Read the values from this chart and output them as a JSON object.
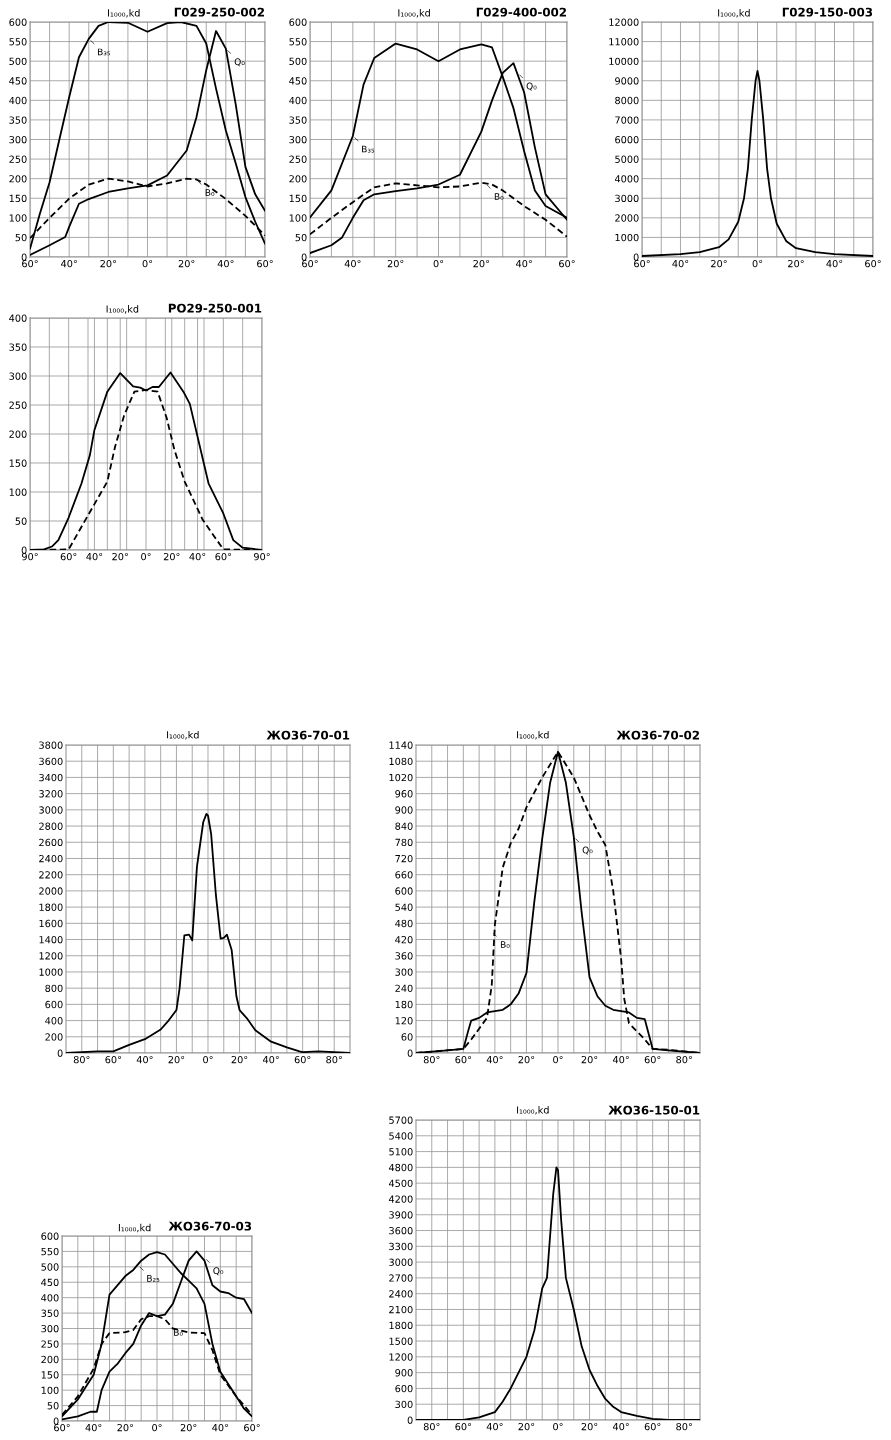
{
  "chart_data": [
    {
      "type": "line",
      "title": "Г029-250-002",
      "ylabel": "I₁₀₀₀,kd",
      "grid": true,
      "xlim": [
        -60,
        60
      ],
      "ylim": [
        0,
        600
      ],
      "xticks": [
        {
          "value": -60,
          "label": "60°"
        },
        {
          "value": -50,
          "label": null
        },
        {
          "value": -40,
          "label": "40°"
        },
        {
          "value": -30,
          "label": null
        },
        {
          "value": -20,
          "label": "20°"
        },
        {
          "value": -10,
          "label": null
        },
        {
          "value": 0,
          "label": "0°"
        },
        {
          "value": 10,
          "label": null
        },
        {
          "value": 20,
          "label": "20°"
        },
        {
          "value": 30,
          "label": null
        },
        {
          "value": 40,
          "label": "40°"
        },
        {
          "value": 50,
          "label": null
        },
        {
          "value": 60,
          "label": "60°"
        }
      ],
      "yticks": [
        0,
        50,
        100,
        150,
        200,
        250,
        300,
        350,
        400,
        450,
        500,
        550,
        600
      ],
      "series": [
        {
          "color": "#000000",
          "line_style": "solid",
          "x": [
            -60,
            -55,
            -50,
            -45,
            -40,
            -35,
            -30,
            -25,
            -20,
            -10,
            0,
            10,
            17,
            25,
            30,
            35,
            40,
            45,
            50,
            55,
            60
          ],
          "values": [
            21,
            110,
            191,
            300,
            408,
            510,
            557,
            590,
            600,
            598,
            575,
            597,
            600,
            590,
            545,
            430,
            323,
            240,
            153,
            90,
            34
          ]
        },
        {
          "color": "#000000",
          "line_style": "solid",
          "x": [
            -60,
            -50,
            -42,
            -40,
            -35,
            -30,
            -20,
            -10,
            0,
            10,
            20,
            25,
            30,
            35,
            40,
            45,
            50,
            55,
            60
          ],
          "values": [
            5,
            30,
            51,
            77,
            136,
            148,
            166,
            175,
            183,
            208,
            272,
            357,
            477,
            577,
            532,
            391,
            230,
            160,
            118
          ]
        },
        {
          "color": "#000000",
          "line_style": "dashed",
          "x": [
            -60,
            -50,
            -40,
            -30,
            -20,
            -10,
            0,
            10,
            20,
            25,
            30,
            40,
            50,
            60
          ],
          "values": [
            48,
            100,
            149,
            185,
            200,
            193,
            180,
            188,
            200,
            198,
            185,
            148,
            105,
            55
          ]
        }
      ],
      "annotations": [
        {
          "text": "B₃₅",
          "x": -30,
          "y": 557
        },
        {
          "text": "Q₀",
          "x": 40,
          "y": 532
        },
        {
          "text": "B₀",
          "x": 25,
          "y": 198
        }
      ]
    },
    {
      "type": "line",
      "title": "Г029-400-002",
      "ylabel": "I₁₀₀₀,kd",
      "grid": true,
      "xlim": [
        -60,
        60
      ],
      "ylim": [
        0,
        600
      ],
      "xticks": [
        {
          "value": -60,
          "label": "60°"
        },
        {
          "value": -50,
          "label": null
        },
        {
          "value": -40,
          "label": "40°"
        },
        {
          "value": -30,
          "label": null
        },
        {
          "value": -20,
          "label": "20°"
        },
        {
          "value": -10,
          "label": null
        },
        {
          "value": 0,
          "label": "0°"
        },
        {
          "value": 10,
          "label": null
        },
        {
          "value": 20,
          "label": "20°"
        },
        {
          "value": 30,
          "label": null
        },
        {
          "value": 40,
          "label": "40°"
        },
        {
          "value": 50,
          "label": null
        },
        {
          "value": 60,
          "label": "60°"
        }
      ],
      "yticks": [
        0,
        50,
        100,
        150,
        200,
        250,
        300,
        350,
        400,
        450,
        500,
        550,
        600
      ],
      "series": [
        {
          "color": "#000000",
          "line_style": "solid",
          "x": [
            -60,
            -50,
            -40,
            -35,
            -30,
            -20,
            -10,
            0,
            10,
            20,
            25,
            30,
            35,
            40,
            45,
            50,
            60
          ],
          "values": [
            101,
            170,
            309,
            440,
            508,
            545,
            530,
            500,
            530,
            543,
            535,
            460,
            380,
            270,
            170,
            130,
            100
          ]
        },
        {
          "color": "#000000",
          "line_style": "solid",
          "x": [
            -60,
            -50,
            -45,
            -40,
            -35,
            -30,
            -20,
            -10,
            0,
            10,
            20,
            25,
            30,
            35,
            40,
            45,
            50,
            60
          ],
          "values": [
            10,
            30,
            50,
            100,
            145,
            160,
            168,
            175,
            185,
            210,
            320,
            400,
            470,
            495,
            420,
            280,
            160,
            95
          ]
        },
        {
          "color": "#000000",
          "line_style": "dashed",
          "x": [
            -60,
            -50,
            -40,
            -30,
            -20,
            -10,
            0,
            10,
            20,
            25,
            30,
            40,
            50,
            60
          ],
          "values": [
            58,
            100,
            140,
            178,
            188,
            183,
            178,
            180,
            190,
            185,
            170,
            130,
            95,
            52
          ]
        }
      ],
      "annotations": [
        {
          "text": "B₃₅",
          "x": -40,
          "y": 309
        },
        {
          "text": "Q₀",
          "x": 37,
          "y": 470
        },
        {
          "text": "B₀",
          "x": 22,
          "y": 188
        }
      ]
    },
    {
      "type": "line",
      "title": "Г029-150-003",
      "ylabel": "I₁₀₀₀,kd",
      "grid": true,
      "xlim": [
        -60,
        60
      ],
      "ylim": [
        0,
        12000
      ],
      "xticks": [
        {
          "value": -60,
          "label": "60°"
        },
        {
          "value": -50,
          "label": null
        },
        {
          "value": -40,
          "label": "40°"
        },
        {
          "value": -30,
          "label": null
        },
        {
          "value": -20,
          "label": "20°"
        },
        {
          "value": -10,
          "label": null
        },
        {
          "value": 0,
          "label": "0°"
        },
        {
          "value": 10,
          "label": null
        },
        {
          "value": 20,
          "label": "20°"
        },
        {
          "value": 30,
          "label": null
        },
        {
          "value": 40,
          "label": "40°"
        },
        {
          "value": 50,
          "label": null
        },
        {
          "value": 60,
          "label": "60°"
        }
      ],
      "yticks": [
        0,
        1000,
        2000,
        3000,
        4000,
        5000,
        6000,
        7000,
        8000,
        9000,
        10000,
        11000,
        12000
      ],
      "series": [
        {
          "color": "#000000",
          "line_style": "solid",
          "x": [
            -60,
            -40,
            -30,
            -20,
            -15,
            -10,
            -7,
            -5,
            -3,
            -1,
            0,
            1,
            3,
            5,
            7,
            10,
            15,
            20,
            30,
            40,
            60
          ],
          "values": [
            50,
            150,
            250,
            500,
            900,
            1800,
            3000,
            4500,
            7000,
            9000,
            9500,
            9000,
            7000,
            4500,
            3000,
            1700,
            800,
            450,
            250,
            150,
            50
          ]
        }
      ]
    },
    {
      "type": "line",
      "title": "РО29-250-001",
      "ylabel": "I₁₀₀₀,kd",
      "grid": true,
      "xlim": [
        -90,
        90
      ],
      "ylim": [
        0,
        400
      ],
      "xticks": [
        {
          "value": -90,
          "label": "90°"
        },
        {
          "value": -75,
          "label": null
        },
        {
          "value": -60,
          "label": "60°"
        },
        {
          "value": -45,
          "label": null
        },
        {
          "value": -40,
          "label": "40°"
        },
        {
          "value": -30,
          "label": null
        },
        {
          "value": -20,
          "label": "20°"
        },
        {
          "value": -15,
          "label": null
        },
        {
          "value": 0,
          "label": "0°"
        },
        {
          "value": 15,
          "label": null
        },
        {
          "value": 20,
          "label": "20°"
        },
        {
          "value": 30,
          "label": null
        },
        {
          "value": 40,
          "label": "40°"
        },
        {
          "value": 45,
          "label": null
        },
        {
          "value": 60,
          "label": "60°"
        },
        {
          "value": 75,
          "label": null
        },
        {
          "value": 90,
          "label": "90°"
        }
      ],
      "yticks": [
        0,
        50,
        100,
        150,
        200,
        250,
        300,
        350,
        400
      ],
      "series": [
        {
          "color": "#000000",
          "line_style": "solid",
          "x": [
            -90,
            -79,
            -73,
            -68,
            -60,
            -50,
            -43.5,
            -40,
            -30,
            -20,
            -10,
            -4.5,
            0,
            5,
            10,
            19,
            29,
            34,
            48.5,
            60,
            67.7,
            75,
            90
          ],
          "values": [
            0,
            1,
            6,
            17,
            56,
            115,
            164,
            207,
            273,
            305,
            282,
            280,
            275,
            281,
            281,
            306,
            273,
            252,
            115,
            63,
            17,
            4,
            0
          ]
        },
        {
          "color": "#000000",
          "line_style": "dashed",
          "x": [
            -90,
            -60,
            -47,
            -30,
            -24,
            -17,
            -9,
            0,
            9,
            16,
            22,
            30,
            44,
            60,
            90
          ],
          "values": [
            0,
            1,
            52,
            118,
            178,
            232,
            273,
            276,
            273,
            228,
            173,
            118,
            52,
            1,
            0
          ]
        }
      ]
    },
    {
      "type": "line",
      "title": "ЖО36-70-01",
      "ylabel": "I₁₀₀₀,kd",
      "grid": true,
      "xlim": [
        -90,
        90
      ],
      "ylim": [
        0,
        3800
      ],
      "xticks": [
        {
          "value": -80,
          "label": "80°"
        },
        {
          "value": -70,
          "label": null
        },
        {
          "value": -60,
          "label": "60°"
        },
        {
          "value": -50,
          "label": null
        },
        {
          "value": -40,
          "label": "40°"
        },
        {
          "value": -30,
          "label": null
        },
        {
          "value": -20,
          "label": "20°"
        },
        {
          "value": -10,
          "label": null
        },
        {
          "value": 0,
          "label": "0°"
        },
        {
          "value": 10,
          "label": null
        },
        {
          "value": 20,
          "label": "20°"
        },
        {
          "value": 30,
          "label": null
        },
        {
          "value": 40,
          "label": "40°"
        },
        {
          "value": 50,
          "label": null
        },
        {
          "value": 60,
          "label": "60°"
        },
        {
          "value": 70,
          "label": null
        },
        {
          "value": 80,
          "label": "80°"
        }
      ],
      "yticks": [
        0,
        200,
        400,
        600,
        800,
        1000,
        1200,
        1400,
        1600,
        1800,
        2000,
        2200,
        2400,
        2600,
        2800,
        3000,
        3200,
        3400,
        3600,
        3800
      ],
      "series": [
        {
          "color": "#000000",
          "line_style": "solid",
          "x": [
            -90,
            -70,
            -60,
            -55,
            -50,
            -40,
            -30,
            -25,
            -20,
            -18,
            -15,
            -12,
            -10,
            -7,
            -3,
            -1,
            0,
            2,
            5,
            8,
            10,
            12,
            15,
            18,
            20,
            25,
            30,
            40,
            50,
            58,
            60,
            70,
            90
          ],
          "values": [
            0,
            20,
            20,
            60,
            100,
            170,
            290,
            400,
            530,
            800,
            1450,
            1460,
            1390,
            2300,
            2850,
            2950,
            2930,
            2700,
            1950,
            1410,
            1420,
            1460,
            1270,
            700,
            530,
            420,
            280,
            140,
            70,
            20,
            10,
            20,
            0
          ]
        }
      ]
    },
    {
      "type": "line",
      "title": "ЖО36-70-02",
      "ylabel": "I₁₀₀₀,kd",
      "grid": true,
      "xlim": [
        -90,
        90
      ],
      "ylim": [
        0,
        1140
      ],
      "xticks": [
        {
          "value": -80,
          "label": "80°"
        },
        {
          "value": -70,
          "label": null
        },
        {
          "value": -60,
          "label": "60°"
        },
        {
          "value": -50,
          "label": null
        },
        {
          "value": -40,
          "label": "40°"
        },
        {
          "value": -30,
          "label": null
        },
        {
          "value": -20,
          "label": "20°"
        },
        {
          "value": -10,
          "label": null
        },
        {
          "value": 0,
          "label": "0°"
        },
        {
          "value": 10,
          "label": null
        },
        {
          "value": 20,
          "label": "20°"
        },
        {
          "value": 30,
          "label": null
        },
        {
          "value": 40,
          "label": "40°"
        },
        {
          "value": 50,
          "label": null
        },
        {
          "value": 60,
          "label": "60°"
        },
        {
          "value": 70,
          "label": null
        },
        {
          "value": 80,
          "label": "80°"
        }
      ],
      "yticks": [
        0,
        60,
        120,
        180,
        240,
        300,
        360,
        420,
        480,
        540,
        600,
        660,
        720,
        780,
        840,
        900,
        960,
        1020,
        1080,
        1140
      ],
      "series": [
        {
          "color": "#000000",
          "line_style": "solid",
          "x": [
            -90,
            -70,
            -60,
            -57,
            -55,
            -50,
            -45,
            -40,
            -35,
            -30,
            -25,
            -20,
            -15,
            -10,
            -5,
            0,
            5,
            10,
            15,
            20,
            25,
            30,
            35,
            40,
            45,
            50,
            55,
            60,
            70,
            90
          ],
          "values": [
            0,
            10,
            15,
            80,
            120,
            130,
            150,
            155,
            160,
            180,
            220,
            296,
            560,
            793,
            1000,
            1115,
            1000,
            800,
            520,
            280,
            210,
            175,
            160,
            155,
            150,
            130,
            125,
            15,
            10,
            0
          ]
        },
        {
          "color": "#000000",
          "line_style": "dashed",
          "x": [
            -90,
            -60,
            -55,
            -50,
            -45,
            -42,
            -40,
            -35,
            -30,
            -25,
            -20,
            -10,
            0,
            10,
            20,
            25,
            30,
            35,
            40,
            42,
            45,
            50,
            55,
            60,
            70,
            90
          ],
          "values": [
            0,
            15,
            50,
            90,
            130,
            250,
            476,
            687,
            776,
            830,
            909,
            1020,
            1115,
            1020,
            880,
            820,
            770,
            600,
            349,
            200,
            110,
            80,
            50,
            15,
            12,
            0
          ]
        }
      ],
      "annotations": [
        {
          "text": "Q₀",
          "x": 10,
          "y": 800
        },
        {
          "text": "B₀",
          "x": -42,
          "y": 450
        }
      ]
    },
    {
      "type": "line",
      "title": "ЖО36-70-03",
      "ylabel": "I₁₀₀₀,kd",
      "grid": true,
      "xlim": [
        -60,
        60
      ],
      "ylim": [
        0,
        600
      ],
      "xticks": [
        {
          "value": -60,
          "label": "60°"
        },
        {
          "value": -50,
          "label": null
        },
        {
          "value": -40,
          "label": "40°"
        },
        {
          "value": -30,
          "label": null
        },
        {
          "value": -20,
          "label": "20°"
        },
        {
          "value": -10,
          "label": null
        },
        {
          "value": 0,
          "label": "0°"
        },
        {
          "value": 10,
          "label": null
        },
        {
          "value": 20,
          "label": "20°"
        },
        {
          "value": 30,
          "label": null
        },
        {
          "value": 40,
          "label": "40°"
        },
        {
          "value": 50,
          "label": null
        },
        {
          "value": 60,
          "label": "60°"
        }
      ],
      "yticks": [
        0,
        50,
        100,
        150,
        200,
        250,
        300,
        350,
        400,
        450,
        500,
        550,
        600
      ],
      "series": [
        {
          "color": "#000000",
          "line_style": "solid",
          "x": [
            -60,
            -50,
            -45,
            -40,
            -35,
            -30,
            -25,
            -20,
            -15,
            -10,
            -5,
            0,
            5,
            10,
            15,
            20,
            25,
            30,
            35,
            40,
            45,
            50,
            55,
            60
          ],
          "values": [
            15,
            70,
            110,
            150,
            250,
            410,
            440,
            470,
            490,
            520,
            540,
            548,
            540,
            510,
            480,
            455,
            430,
            380,
            250,
            160,
            120,
            80,
            40,
            15
          ]
        },
        {
          "color": "#000000",
          "line_style": "solid",
          "x": [
            -60,
            -50,
            -42,
            -38,
            -35,
            -30,
            -25,
            -20,
            -15,
            -10,
            -5,
            0,
            5,
            10,
            15,
            20,
            25,
            30,
            35,
            40,
            45,
            50,
            55,
            60
          ],
          "values": [
            5,
            15,
            30,
            30,
            100,
            160,
            185,
            220,
            250,
            310,
            350,
            340,
            345,
            380,
            450,
            520,
            550,
            520,
            440,
            420,
            415,
            400,
            395,
            350
          ]
        },
        {
          "color": "#000000",
          "line_style": "dashed",
          "x": [
            -60,
            -50,
            -40,
            -35,
            -30,
            -20,
            -15,
            -10,
            -5,
            0,
            5,
            10,
            20,
            30,
            35,
            40,
            50,
            60
          ],
          "values": [
            20,
            80,
            170,
            250,
            285,
            288,
            295,
            330,
            340,
            340,
            330,
            300,
            287,
            285,
            230,
            150,
            80,
            20
          ]
        }
      ],
      "annotations": [
        {
          "text": "B₂₅",
          "x": -12,
          "y": 505
        },
        {
          "text": "Q₀",
          "x": 30,
          "y": 530
        },
        {
          "text": "B₀",
          "x": 5,
          "y": 330
        }
      ]
    },
    {
      "type": "line",
      "title": "ЖО36-150-01",
      "ylabel": "I₁₀₀₀,kd",
      "grid": true,
      "xlim": [
        -90,
        90
      ],
      "ylim": [
        0,
        5700
      ],
      "xticks": [
        {
          "value": -80,
          "label": "80°"
        },
        {
          "value": -70,
          "label": null
        },
        {
          "value": -60,
          "label": "60°"
        },
        {
          "value": -50,
          "label": null
        },
        {
          "value": -40,
          "label": "40°"
        },
        {
          "value": -30,
          "label": null
        },
        {
          "value": -20,
          "label": "20°"
        },
        {
          "value": -10,
          "label": null
        },
        {
          "value": 0,
          "label": "0°"
        },
        {
          "value": 10,
          "label": null
        },
        {
          "value": 20,
          "label": "20°"
        },
        {
          "value": 30,
          "label": null
        },
        {
          "value": 40,
          "label": "40°"
        },
        {
          "value": 50,
          "label": null
        },
        {
          "value": 60,
          "label": "60°"
        },
        {
          "value": 70,
          "label": null
        },
        {
          "value": 80,
          "label": "80°"
        }
      ],
      "yticks": [
        0,
        300,
        600,
        900,
        1200,
        1500,
        1800,
        2100,
        2400,
        2700,
        3000,
        3300,
        3600,
        3900,
        4200,
        4500,
        4800,
        5100,
        5400,
        5700
      ],
      "series": [
        {
          "color": "#000000",
          "line_style": "solid",
          "x": [
            -90,
            -60,
            -50,
            -40,
            -35,
            -30,
            -25,
            -20,
            -15,
            -10,
            -7,
            -5,
            -3,
            -1,
            0,
            2,
            5,
            10,
            15,
            20,
            25,
            30,
            35,
            40,
            50,
            60,
            70,
            90
          ],
          "values": [
            0,
            0,
            50,
            150,
            350,
            600,
            900,
            1200,
            1700,
            2500,
            2700,
            3500,
            4300,
            4800,
            4750,
            3800,
            2700,
            2100,
            1400,
            950,
            650,
            400,
            250,
            150,
            80,
            20,
            0,
            0
          ]
        }
      ]
    }
  ]
}
